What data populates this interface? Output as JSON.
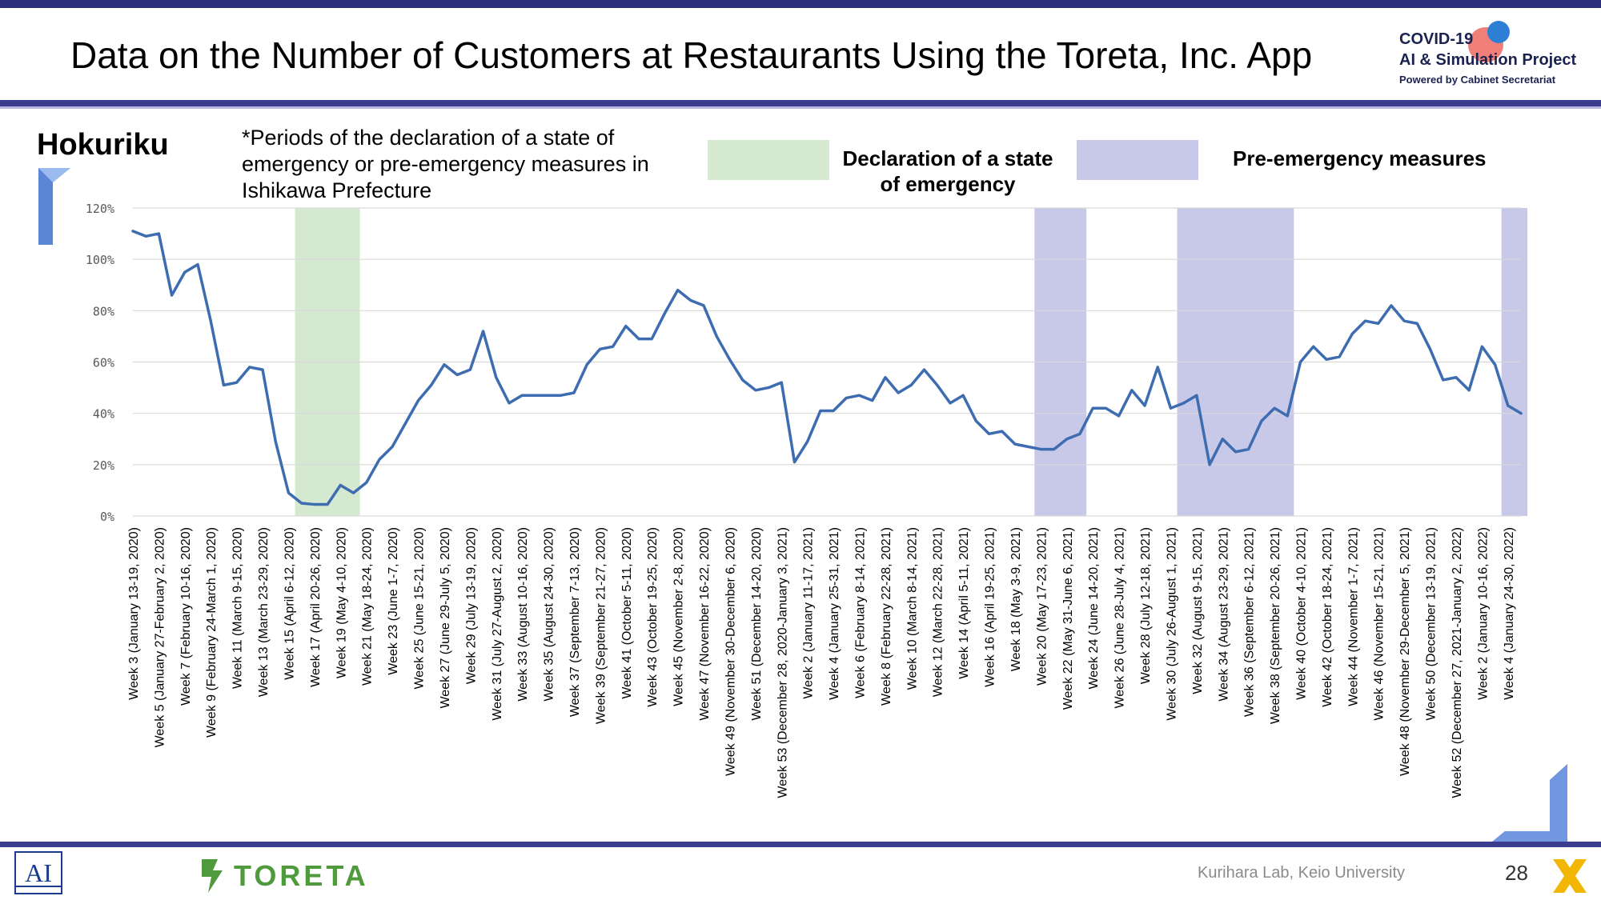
{
  "header": {
    "title": "Data on the Number of Customers at Restaurants Using the Toreta, Inc. App",
    "brand_line1": "COVID-19",
    "brand_line2": "AI & Simulation Project",
    "brand_line3": "Powered by Cabinet Secretariat"
  },
  "region": "Hokuriku",
  "note": "*Periods of the declaration of a state of emergency or pre-emergency measures in Ishikawa Prefecture",
  "legend": {
    "emergency_label": "Declaration of a state of emergency",
    "preemergency_label": "Pre-emergency measures",
    "emergency_color": "#d5e8d0",
    "preemergency_color": "#c8c8e8"
  },
  "footer": {
    "toreta": "TORETA",
    "lab": "Kurihara Lab, Keio University",
    "page": "28"
  },
  "colors": {
    "line": "#3d6cb0",
    "accent": "#3b3c8f",
    "grid": "#d9d9d9"
  },
  "chart_data": {
    "type": "line",
    "title": "",
    "xlabel": "",
    "ylabel": "",
    "ylim": [
      0,
      120
    ],
    "yticks": [
      "0%",
      "20%",
      "40%",
      "60%",
      "80%",
      "100%",
      "120%"
    ],
    "grid": true,
    "tick_labels": [
      "Week 3 (January 13-19, 2020)",
      "Week 5 (January 27-February 2, 2020)",
      "Week 7 (February 10-16, 2020)",
      "Week 9 (February 24-March 1, 2020)",
      "Week 11 (March 9-15, 2020)",
      "Week 13 (March 23-29, 2020)",
      "Week 15 (April 6-12, 2020)",
      "Week 17 (April 20-26, 2020)",
      "Week 19 (May 4-10, 2020)",
      "Week 21 (May 18-24, 2020)",
      "Week 23 (June 1-7, 2020)",
      "Week 25 (June 15-21, 2020)",
      "Week 27 (June 29-July 5, 2020)",
      "Week 29 (July 13-19, 2020)",
      "Week 31 (July 27-August 2, 2020)",
      "Week 33 (August 10-16, 2020)",
      "Week 35 (August 24-30, 2020)",
      "Week 37 (September 7-13, 2020)",
      "Week 39 (September 21-27, 2020)",
      "Week 41 (October 5-11, 2020)",
      "Week 43 (October 19-25, 2020)",
      "Week 45 (November 2-8, 2020)",
      "Week 47 (November 16-22, 2020)",
      "Week 49 (November 30-December 6, 2020)",
      "Week 51 (December 14-20, 2020)",
      "Week 53 (December 28, 2020-January 3, 2021)",
      "Week 2 (January 11-17, 2021)",
      "Week 4 (January 25-31, 2021)",
      "Week 6 (February 8-14, 2021)",
      "Week 8 (February 22-28, 2021)",
      "Week 10 (March 8-14, 2021)",
      "Week 12 (March 22-28, 2021)",
      "Week 14 (April 5-11, 2021)",
      "Week 16 (April 19-25, 2021)",
      "Week 18 (May 3-9, 2021)",
      "Week 20 (May 17-23, 2021)",
      "Week 22 (May 31-June 6, 2021)",
      "Week 24 (June 14-20, 2021)",
      "Week 26 (June 28-July 4, 2021)",
      "Week 28 (July 12-18, 2021)",
      "Week 30 (July 26-August 1, 2021)",
      "Week 32 (August 9-15, 2021)",
      "Week 34 (August 23-29, 2021)",
      "Week 36 (September 6-12, 2021)",
      "Week 38 (September 20-26, 2021)",
      "Week 40 (October 4-10, 2021)",
      "Week 42 (October 18-24, 2021)",
      "Week 44 (November 1-7, 2021)",
      "Week 46 (November 15-21, 2021)",
      "Week 48 (November 29-December 5, 2021)",
      "Week 50 (December 13-19, 2021)",
      "Week 52 (December 27, 2021-January 2, 2022)",
      "Week 2 (January 10-16, 2022)",
      "Week 4 (January 24-30, 2022)"
    ],
    "values": [
      111,
      109,
      110,
      86,
      95,
      98,
      76,
      51,
      52,
      58,
      57,
      29,
      9,
      5,
      4.5,
      4.5,
      12,
      9,
      13,
      22,
      27,
      36,
      45,
      51,
      59,
      55,
      57,
      72,
      54,
      44,
      47,
      47,
      47,
      47,
      48,
      59,
      65,
      66,
      74,
      69,
      69,
      79,
      88,
      84,
      82,
      70,
      61,
      53,
      49,
      50,
      52,
      21,
      29,
      41,
      41,
      46,
      47,
      45,
      54,
      48,
      51,
      57,
      51,
      44,
      47,
      37,
      32,
      33,
      28,
      27,
      26,
      26,
      30,
      32,
      42,
      42,
      39,
      49,
      43,
      58,
      42,
      44,
      47,
      20,
      30,
      25,
      26,
      37,
      42,
      39,
      60,
      66,
      61,
      62,
      71,
      76,
      75,
      82,
      76,
      75,
      65,
      53,
      54,
      49,
      66,
      59,
      43,
      40
    ],
    "shaded_periods": [
      {
        "type": "emergency",
        "start_index": 12.5,
        "end_index": 17.5
      },
      {
        "type": "preemergency",
        "start_index": 69.5,
        "end_index": 73.5
      },
      {
        "type": "preemergency",
        "start_index": 80.5,
        "end_index": 89.5
      },
      {
        "type": "preemergency",
        "start_index": 105.5,
        "end_index": 107.5
      }
    ]
  }
}
